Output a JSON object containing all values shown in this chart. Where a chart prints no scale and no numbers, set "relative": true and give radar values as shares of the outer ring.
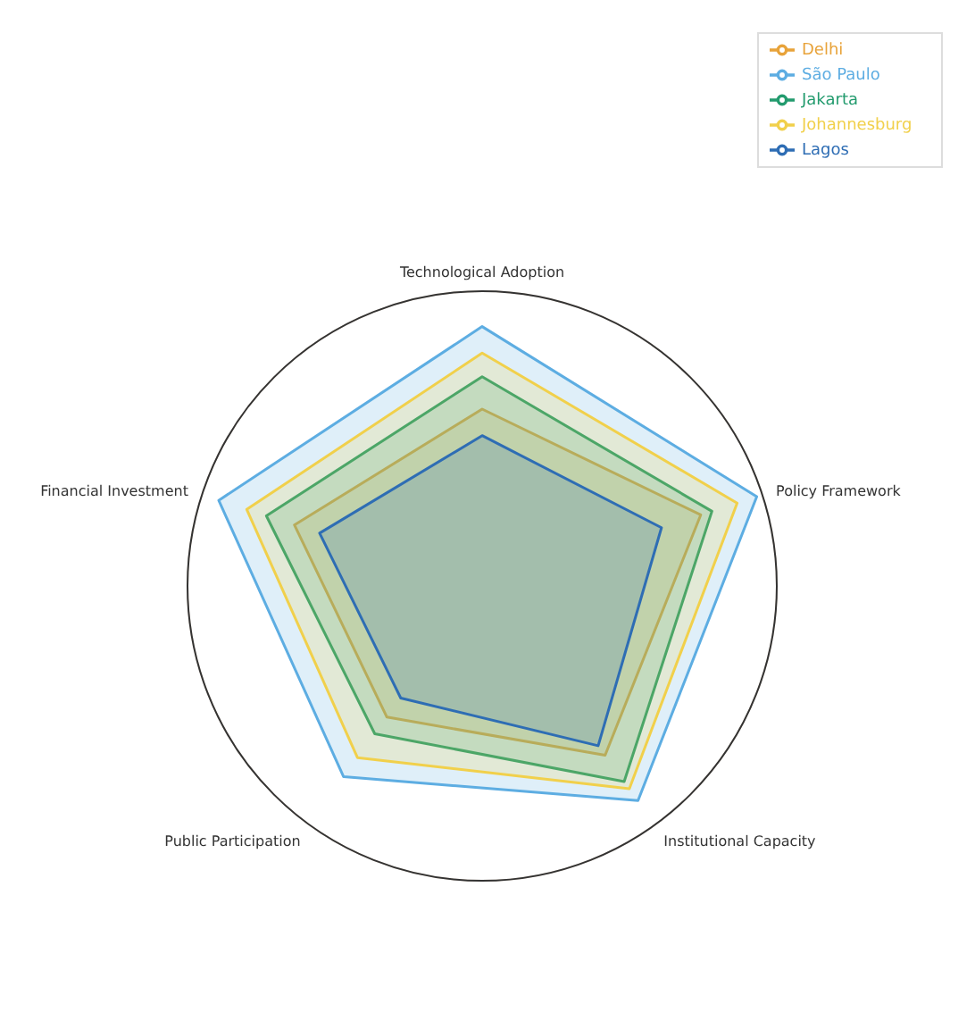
{
  "chart_data": {
    "type": "radar",
    "relative": true,
    "grid": true,
    "legend": "top right",
    "categories": [
      "Technological Adoption",
      "Policy Framework",
      "Institutional Capacity",
      "Public Participation",
      "Financial Investment"
    ],
    "series": [
      {
        "name": "Delhi",
        "color": "#e8a33a",
        "values": [
          0.6,
          0.78,
          0.71,
          0.55,
          0.67
        ]
      },
      {
        "name": "São Paulo",
        "color": "#5dade2",
        "values": [
          0.88,
          0.98,
          0.9,
          0.8,
          0.94
        ]
      },
      {
        "name": "Jakarta",
        "color": "#239b6e",
        "values": [
          0.71,
          0.82,
          0.82,
          0.62,
          0.77
        ]
      },
      {
        "name": "Johannesburg",
        "color": "#f1d04b",
        "values": [
          0.79,
          0.91,
          0.85,
          0.72,
          0.84
        ]
      },
      {
        "name": "Lagos",
        "color": "#2e6db4",
        "values": [
          0.51,
          0.64,
          0.67,
          0.47,
          0.58
        ]
      }
    ]
  }
}
